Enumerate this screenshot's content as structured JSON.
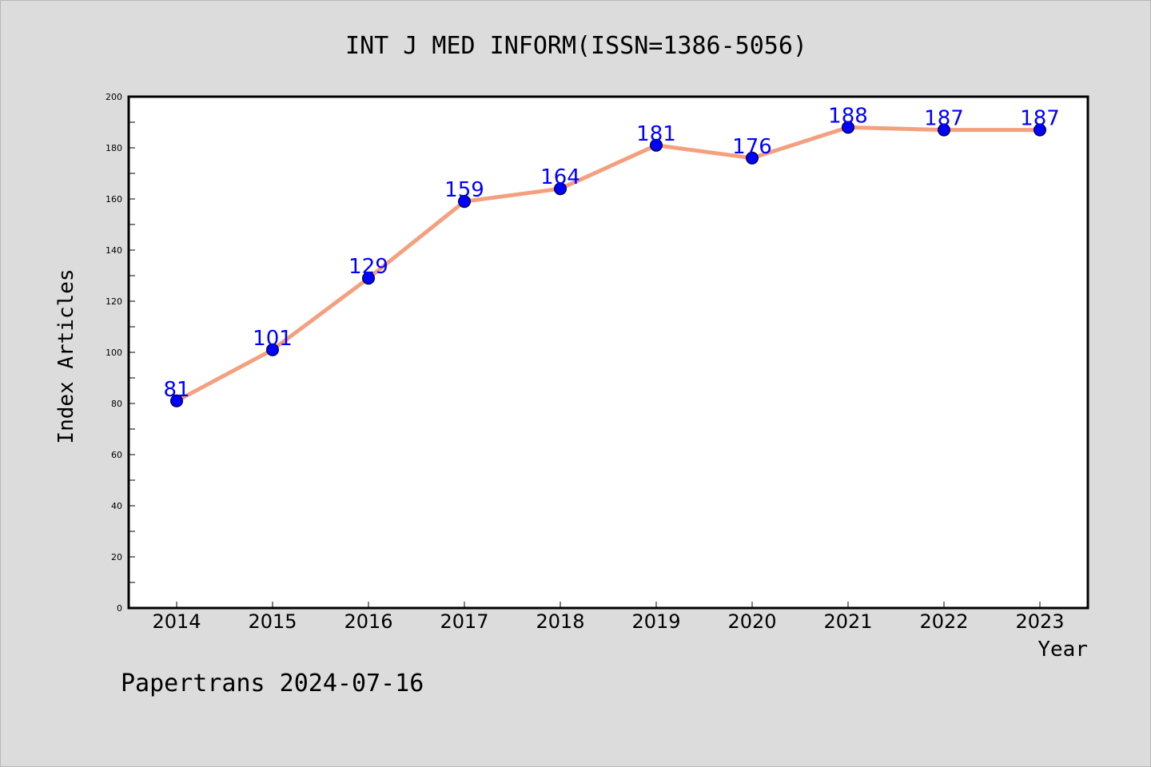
{
  "chart_data": {
    "type": "line",
    "title": "INT J MED INFORM(ISSN=1386-5056)",
    "xlabel": "Year",
    "ylabel": "Index Articles",
    "x": [
      "2014",
      "2015",
      "2016",
      "2017",
      "2018",
      "2019",
      "2020",
      "2021",
      "2022",
      "2023"
    ],
    "series": [
      {
        "values": [
          81,
          101,
          129,
          159,
          164,
          181,
          176,
          188,
          187,
          187
        ],
        "line_color": "#f4a07f",
        "marker_color": "#0000ff",
        "label_color": "#0000ff"
      }
    ],
    "ylim": [
      0,
      200
    ],
    "yticks": [
      "0",
      "20",
      "40",
      "60",
      "80",
      "100",
      "120",
      "140",
      "160",
      "180",
      "200"
    ],
    "grid": false,
    "legend": "none",
    "watermark": "Papertrans 2024-07-16"
  }
}
